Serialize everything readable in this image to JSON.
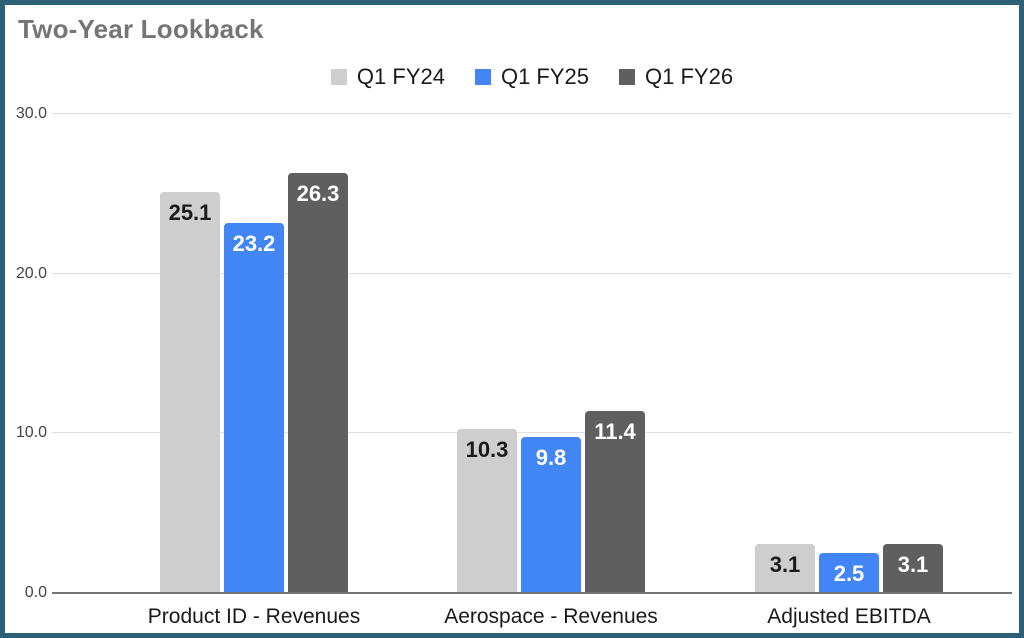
{
  "title": "Two-Year Lookback",
  "colors": {
    "frame_border": "#2c6077",
    "title_text": "#757575",
    "gridline": "#e0e0e0",
    "baseline": "#757575",
    "tick_text": "#444444",
    "category_text": "#1a1a1a",
    "legend_text": "#1a1a1a"
  },
  "chart_data": {
    "type": "bar",
    "title": "Two-Year Lookback",
    "categories": [
      "Product ID - Revenues",
      "Aerospace - Revenues",
      "Adjusted EBITDA"
    ],
    "series": [
      {
        "name": "Q1 FY24",
        "color": "#cecece",
        "value_label_color": "#1a1a1a",
        "values": [
          25.1,
          10.3,
          3.1
        ]
      },
      {
        "name": "Q1 FY25",
        "color": "#4285f4",
        "value_label_color": "#ffffff",
        "values": [
          23.2,
          9.8,
          2.5
        ]
      },
      {
        "name": "Q1 FY26",
        "color": "#5f5f5f",
        "value_label_color": "#ffffff",
        "values": [
          26.3,
          11.4,
          3.1
        ]
      }
    ],
    "value_label_format": "0.0",
    "value_labels_position": "inside-top",
    "ylim": [
      0,
      30
    ],
    "yticks": [
      {
        "value": 0,
        "label": "0.0"
      },
      {
        "value": 10,
        "label": "10.0"
      },
      {
        "value": 20,
        "label": "20.0"
      },
      {
        "value": 30,
        "label": "30.0"
      }
    ],
    "grid": true,
    "legend_position": "top-center",
    "xlabel": "",
    "ylabel": ""
  }
}
